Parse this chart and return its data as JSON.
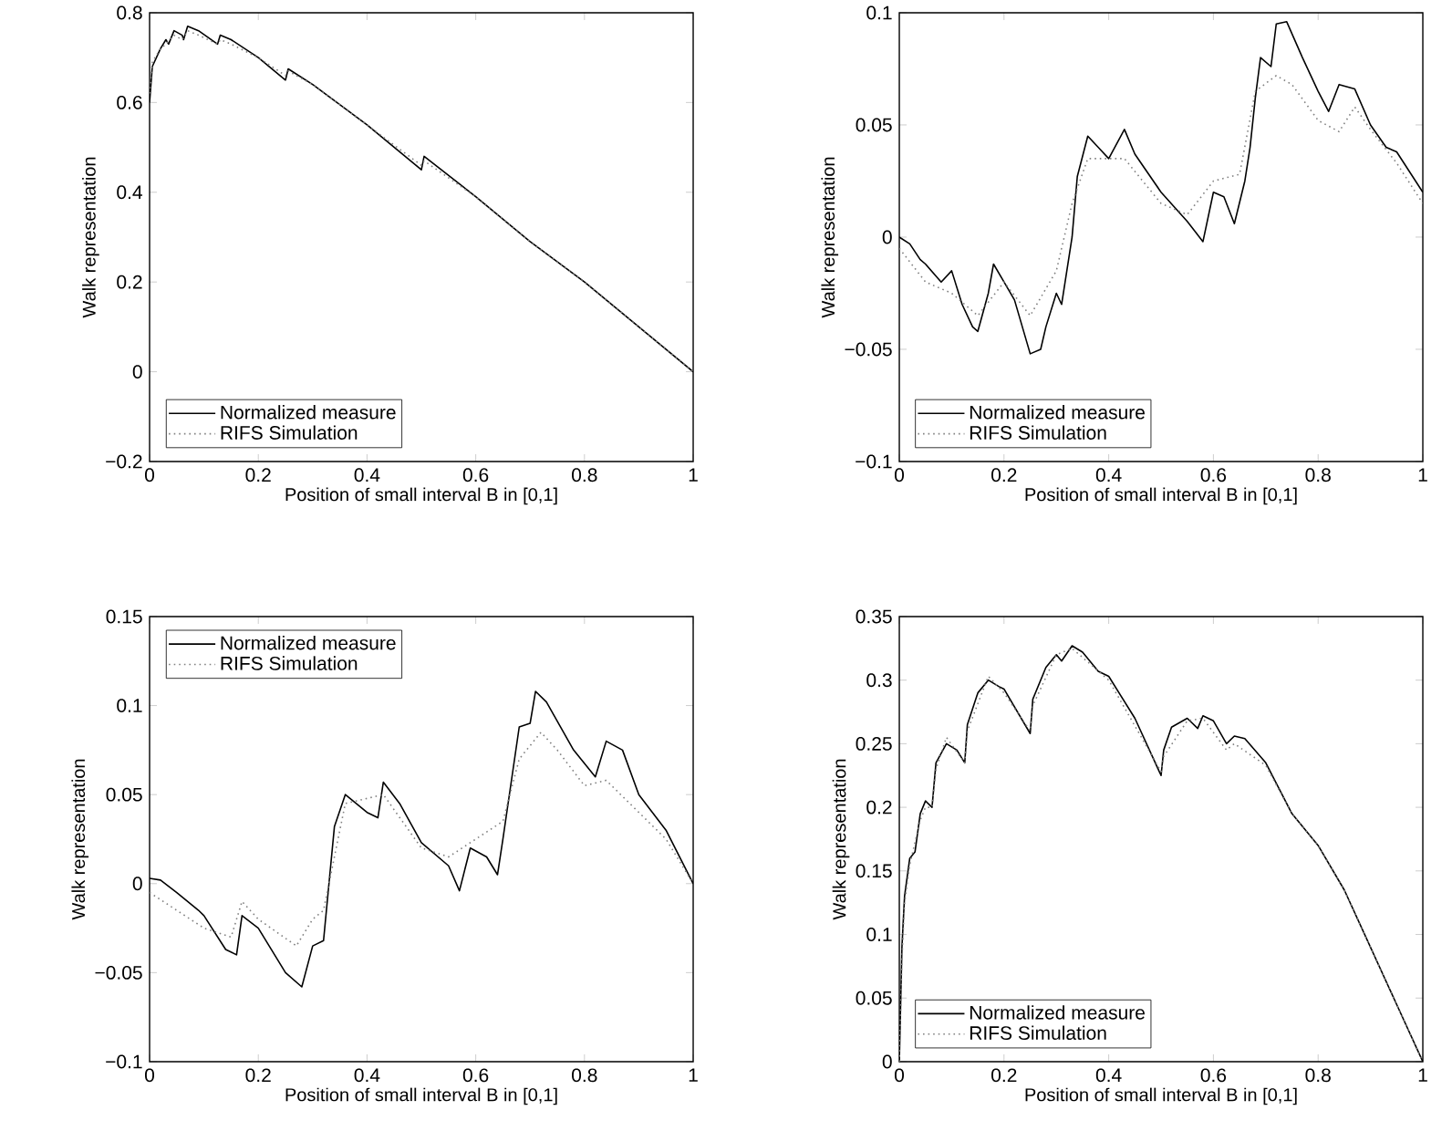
{
  "chart_data": [
    {
      "type": "line",
      "xlabel": "Position of small interval B in [0,1]",
      "ylabel": "Walk representation",
      "xlim": [
        0,
        1
      ],
      "ylim": [
        -0.2,
        0.8
      ],
      "xticks": [
        0,
        0.2,
        0.4,
        0.6,
        0.8,
        1
      ],
      "yticks": [
        {
          "value": -0.2,
          "label": "−0.2"
        },
        0,
        0.2,
        0.4,
        0.6,
        0.8
      ],
      "legend": "bottom left",
      "marker": "none",
      "series": [
        {
          "name": "Normalized measure",
          "color": "#000000",
          "line_style": "solid",
          "x": [
            0,
            0.005,
            0.02,
            0.03,
            0.035,
            0.045,
            0.06,
            0.0625,
            0.07,
            0.09,
            0.125,
            0.13,
            0.15,
            0.2,
            0.25,
            0.255,
            0.3,
            0.4,
            0.5,
            0.505,
            0.6,
            0.7,
            0.8,
            0.9,
            1
          ],
          "values": [
            0.6,
            0.68,
            0.72,
            0.74,
            0.73,
            0.76,
            0.75,
            0.74,
            0.77,
            0.76,
            0.73,
            0.75,
            0.74,
            0.7,
            0.65,
            0.675,
            0.64,
            0.55,
            0.45,
            0.48,
            0.39,
            0.29,
            0.2,
            0.1,
            0
          ]
        },
        {
          "name": "RIFS Simulation",
          "color": "#808080",
          "line_style": "dotted",
          "x": [
            0,
            0.005,
            0.02,
            0.03,
            0.045,
            0.06,
            0.07,
            0.09,
            0.125,
            0.13,
            0.15,
            0.2,
            0.25,
            0.255,
            0.3,
            0.4,
            0.5,
            0.505,
            0.6,
            0.7,
            0.8,
            0.9,
            1
          ],
          "values": [
            0.62,
            0.69,
            0.72,
            0.73,
            0.75,
            0.74,
            0.76,
            0.75,
            0.73,
            0.74,
            0.73,
            0.7,
            0.66,
            0.67,
            0.64,
            0.55,
            0.46,
            0.47,
            0.39,
            0.29,
            0.2,
            0.1,
            0
          ]
        }
      ]
    },
    {
      "type": "line",
      "xlabel": "Position of small interval B in [0,1]",
      "ylabel": "Walk representation",
      "xlim": [
        0,
        1
      ],
      "ylim": [
        -0.1,
        0.1
      ],
      "xticks": [
        0,
        0.2,
        0.4,
        0.6,
        0.8,
        1
      ],
      "yticks": [
        {
          "value": -0.1,
          "label": "−0.1"
        },
        {
          "value": -0.05,
          "label": "−0.05"
        },
        0,
        0.05,
        0.1
      ],
      "legend": "bottom left",
      "marker": "none",
      "series": [
        {
          "name": "Normalized measure",
          "color": "#000000",
          "line_style": "solid",
          "x": [
            0,
            0.02,
            0.04,
            0.05,
            0.08,
            0.1,
            0.12,
            0.14,
            0.15,
            0.17,
            0.18,
            0.2,
            0.22,
            0.25,
            0.27,
            0.28,
            0.3,
            0.31,
            0.33,
            0.34,
            0.36,
            0.38,
            0.4,
            0.43,
            0.45,
            0.5,
            0.55,
            0.58,
            0.6,
            0.62,
            0.64,
            0.66,
            0.67,
            0.68,
            0.69,
            0.71,
            0.72,
            0.74,
            0.77,
            0.8,
            0.82,
            0.84,
            0.87,
            0.9,
            0.93,
            0.95,
            1
          ],
          "values": [
            0,
            -0.003,
            -0.01,
            -0.012,
            -0.02,
            -0.015,
            -0.03,
            -0.04,
            -0.042,
            -0.025,
            -0.012,
            -0.02,
            -0.028,
            -0.052,
            -0.05,
            -0.04,
            -0.025,
            -0.03,
            0,
            0.027,
            0.045,
            0.04,
            0.035,
            0.048,
            0.037,
            0.02,
            0.007,
            -0.002,
            0.02,
            0.018,
            0.006,
            0.025,
            0.04,
            0.062,
            0.08,
            0.076,
            0.095,
            0.096,
            0.08,
            0.065,
            0.056,
            0.068,
            0.066,
            0.05,
            0.04,
            0.038,
            0.02
          ]
        },
        {
          "name": "RIFS Simulation",
          "color": "#808080",
          "line_style": "dotted",
          "x": [
            0,
            0.05,
            0.1,
            0.15,
            0.2,
            0.25,
            0.3,
            0.33,
            0.36,
            0.43,
            0.5,
            0.55,
            0.6,
            0.65,
            0.68,
            0.72,
            0.75,
            0.8,
            0.84,
            0.87,
            0.9,
            0.95,
            1
          ],
          "values": [
            -0.005,
            -0.02,
            -0.025,
            -0.035,
            -0.02,
            -0.035,
            -0.015,
            0.015,
            0.035,
            0.035,
            0.015,
            0.01,
            0.025,
            0.028,
            0.065,
            0.072,
            0.068,
            0.052,
            0.047,
            0.058,
            0.048,
            0.033,
            0.015
          ]
        }
      ]
    },
    {
      "type": "line",
      "xlabel": "Position of small interval B in [0,1]",
      "ylabel": "Walk representation",
      "xlim": [
        0,
        1
      ],
      "ylim": [
        -0.1,
        0.15
      ],
      "xticks": [
        0,
        0.2,
        0.4,
        0.6,
        0.8,
        1
      ],
      "yticks": [
        {
          "value": -0.1,
          "label": "−0.1"
        },
        {
          "value": -0.05,
          "label": "−0.05"
        },
        0,
        0.05,
        0.1,
        0.15
      ],
      "legend": "top left",
      "marker": "none",
      "series": [
        {
          "name": "Normalized measure",
          "color": "#000000",
          "line_style": "solid",
          "x": [
            0,
            0.02,
            0.05,
            0.09,
            0.1,
            0.14,
            0.16,
            0.17,
            0.2,
            0.25,
            0.28,
            0.3,
            0.32,
            0.33,
            0.34,
            0.36,
            0.4,
            0.42,
            0.43,
            0.46,
            0.5,
            0.55,
            0.57,
            0.59,
            0.62,
            0.64,
            0.65,
            0.68,
            0.7,
            0.71,
            0.73,
            0.78,
            0.82,
            0.84,
            0.87,
            0.9,
            0.95,
            1
          ],
          "values": [
            0.003,
            0.002,
            -0.005,
            -0.015,
            -0.018,
            -0.037,
            -0.04,
            -0.018,
            -0.025,
            -0.05,
            -0.058,
            -0.035,
            -0.032,
            0,
            0.032,
            0.05,
            0.04,
            0.037,
            0.057,
            0.045,
            0.023,
            0.01,
            -0.004,
            0.02,
            0.015,
            0.005,
            0.025,
            0.088,
            0.09,
            0.108,
            0.102,
            0.075,
            0.06,
            0.08,
            0.075,
            0.05,
            0.03,
            0
          ]
        },
        {
          "name": "RIFS Simulation",
          "color": "#808080",
          "line_style": "dotted",
          "x": [
            0,
            0.05,
            0.1,
            0.15,
            0.17,
            0.2,
            0.27,
            0.3,
            0.32,
            0.36,
            0.43,
            0.5,
            0.55,
            0.6,
            0.65,
            0.68,
            0.72,
            0.75,
            0.8,
            0.84,
            0.9,
            0.95,
            1
          ],
          "values": [
            -0.005,
            -0.015,
            -0.025,
            -0.03,
            -0.01,
            -0.02,
            -0.035,
            -0.02,
            -0.015,
            0.045,
            0.05,
            0.02,
            0.015,
            0.025,
            0.035,
            0.07,
            0.085,
            0.075,
            0.055,
            0.058,
            0.04,
            0.025,
            0
          ]
        }
      ]
    },
    {
      "type": "line",
      "xlabel": "Position of small interval B in [0,1]",
      "ylabel": "Walk representation",
      "xlim": [
        0,
        1
      ],
      "ylim": [
        0,
        0.35
      ],
      "xticks": [
        0,
        0.2,
        0.4,
        0.6,
        0.8,
        1
      ],
      "yticks": [
        0,
        0.05,
        0.1,
        0.15,
        0.2,
        0.25,
        0.3,
        0.35
      ],
      "legend": "bottom left",
      "marker": "none",
      "series": [
        {
          "name": "Normalized measure",
          "color": "#000000",
          "line_style": "solid",
          "x": [
            0,
            0.005,
            0.01,
            0.02,
            0.03,
            0.04,
            0.05,
            0.0625,
            0.07,
            0.09,
            0.11,
            0.125,
            0.13,
            0.15,
            0.17,
            0.19,
            0.2,
            0.25,
            0.255,
            0.28,
            0.3,
            0.31,
            0.33,
            0.35,
            0.38,
            0.4,
            0.45,
            0.5,
            0.505,
            0.52,
            0.55,
            0.57,
            0.58,
            0.6,
            0.625,
            0.64,
            0.66,
            0.7,
            0.75,
            0.8,
            0.85,
            0.9,
            0.95,
            1
          ],
          "values": [
            0,
            0.09,
            0.13,
            0.16,
            0.165,
            0.195,
            0.205,
            0.2,
            0.235,
            0.25,
            0.245,
            0.235,
            0.265,
            0.29,
            0.3,
            0.295,
            0.293,
            0.258,
            0.285,
            0.31,
            0.32,
            0.315,
            0.327,
            0.322,
            0.307,
            0.303,
            0.27,
            0.225,
            0.245,
            0.263,
            0.27,
            0.262,
            0.272,
            0.268,
            0.25,
            0.256,
            0.254,
            0.235,
            0.195,
            0.17,
            0.135,
            0.09,
            0.045,
            0
          ]
        },
        {
          "name": "RIFS Simulation",
          "color": "#808080",
          "line_style": "dotted",
          "x": [
            0,
            0.005,
            0.01,
            0.02,
            0.04,
            0.05,
            0.0625,
            0.07,
            0.09,
            0.125,
            0.13,
            0.17,
            0.2,
            0.25,
            0.255,
            0.3,
            0.33,
            0.4,
            0.5,
            0.505,
            0.55,
            0.58,
            0.625,
            0.64,
            0.7,
            0.75,
            0.8,
            0.85,
            0.9,
            0.95,
            1
          ],
          "values": [
            0,
            0.08,
            0.125,
            0.155,
            0.19,
            0.2,
            0.2,
            0.23,
            0.255,
            0.235,
            0.26,
            0.303,
            0.29,
            0.26,
            0.28,
            0.32,
            0.325,
            0.3,
            0.228,
            0.24,
            0.268,
            0.27,
            0.245,
            0.25,
            0.233,
            0.195,
            0.17,
            0.135,
            0.09,
            0.045,
            0
          ]
        }
      ]
    }
  ]
}
